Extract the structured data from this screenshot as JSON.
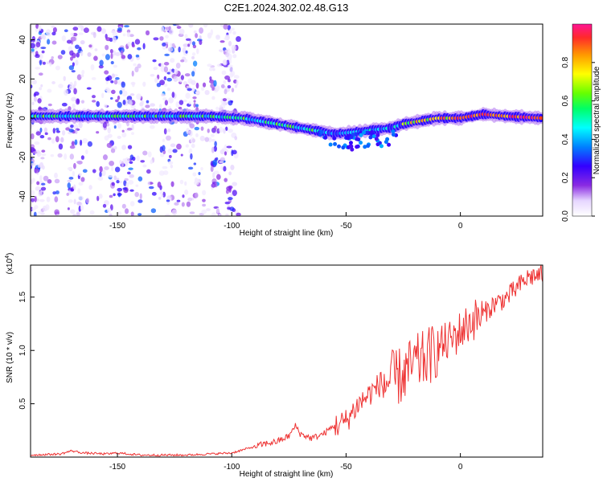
{
  "figure": {
    "title": "C2E1.2024.302.02.48.G13"
  },
  "chart_data": [
    {
      "type": "heatmap",
      "xlabel": "Height of straight line (km)",
      "ylabel": "Frequency (Hz)",
      "xlim": [
        -188,
        36
      ],
      "ylim": [
        -50,
        48
      ],
      "xticks": [
        -150,
        -100,
        -50,
        0
      ],
      "yticks": [
        -40,
        -20,
        0,
        20,
        40
      ],
      "ridge": {
        "x": [
          -188,
          -170,
          -150,
          -130,
          -110,
          -95,
          -85,
          -75,
          -65,
          -55,
          -45,
          -38,
          -30,
          -25,
          -20,
          -10,
          0,
          10,
          20,
          36
        ],
        "freq_hz": [
          1,
          1,
          1,
          1,
          1,
          0,
          -2,
          -4,
          -6,
          -8,
          -7,
          -6,
          -5,
          -3,
          -2,
          0,
          0,
          2,
          1,
          0
        ]
      },
      "colorbar": {
        "label": "Normalized spectral amplitude",
        "range": [
          0.0,
          1.0
        ],
        "ticks": [
          0.0,
          0.2,
          0.4,
          0.6,
          0.8
        ],
        "tick_labels": [
          "0.0",
          "0.2",
          "0.4",
          "0.6",
          "0.8"
        ]
      }
    },
    {
      "type": "line",
      "xlabel": "Height of straight line (km)",
      "ylabel": "SNR (10 * v/v)",
      "scale_label": "(x10",
      "scale_exponent": "4",
      "scale_close": ")",
      "xlim": [
        -188,
        36
      ],
      "ylim": [
        0,
        1.8
      ],
      "xticks": [
        -150,
        -100,
        -50,
        0
      ],
      "yticks": [
        0.5,
        1.0,
        1.5
      ],
      "ytick_labels": [
        "0.5",
        "1.0",
        "1.5"
      ],
      "series": [
        {
          "color": "#ee3333",
          "x": [
            -188,
            -175,
            -170,
            -165,
            -155,
            -150,
            -140,
            -130,
            -120,
            -110,
            -100,
            -95,
            -90,
            -85,
            -80,
            -75,
            -72,
            -70,
            -65,
            -60,
            -55,
            -50,
            -45,
            -40,
            -35,
            -30,
            -25,
            -20,
            -15,
            -10,
            -5,
            0,
            5,
            10,
            15,
            20,
            25,
            30,
            36
          ],
          "y": [
            0.02,
            0.03,
            0.06,
            0.04,
            0.03,
            0.04,
            0.02,
            0.02,
            0.02,
            0.03,
            0.04,
            0.07,
            0.1,
            0.13,
            0.15,
            0.2,
            0.3,
            0.22,
            0.18,
            0.22,
            0.3,
            0.35,
            0.5,
            0.6,
            0.7,
            0.75,
            0.8,
            0.9,
            0.95,
            1.05,
            1.1,
            1.2,
            1.3,
            1.35,
            1.45,
            1.5,
            1.6,
            1.7,
            1.72
          ]
        }
      ]
    }
  ]
}
